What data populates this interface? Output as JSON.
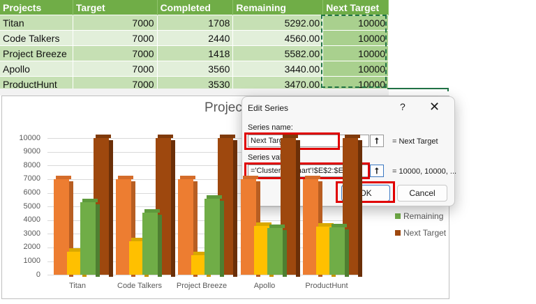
{
  "sheet": {
    "headers": [
      "Projects",
      "Target",
      "Completed",
      "Remaining",
      "Next Target"
    ],
    "rows": [
      {
        "project": "Titan",
        "target": "7000",
        "completed": "1708",
        "remaining": "5292.00",
        "next": "10000"
      },
      {
        "project": "Code Talkers",
        "target": "7000",
        "completed": "2440",
        "remaining": "4560.00",
        "next": "10000"
      },
      {
        "project": "Project Breeze",
        "target": "7000",
        "completed": "1418",
        "remaining": "5582.00",
        "next": "10000"
      },
      {
        "project": "Apollo",
        "target": "7000",
        "completed": "3560",
        "remaining": "3440.00",
        "next": "10000"
      },
      {
        "project": "ProductHunt",
        "target": "7000",
        "completed": "3530",
        "remaining": "3470.00",
        "next": "10000"
      }
    ]
  },
  "chart": {
    "title_visible": "Project",
    "y_ticks": [
      "10000",
      "9000",
      "8000",
      "7000",
      "6000",
      "5000",
      "4000",
      "3000",
      "2000",
      "1000",
      "0"
    ],
    "x_labels": [
      "Titan",
      "Code Talkers",
      "Project Breeze",
      "Apollo",
      "ProductHunt"
    ],
    "legend": [
      {
        "label": "Remaining",
        "color": "#70ad47"
      },
      {
        "label": "Next Target",
        "color": "#9e480e"
      }
    ]
  },
  "dialog": {
    "title": "Edit Series",
    "help": "?",
    "close": "✕",
    "series_name_label": "Series name:",
    "series_name_value": "Next Target",
    "series_name_preview": "= Next Target",
    "series_values_label": "Series values:",
    "series_values_value": "='Clustered Chart'!$E$2:$E$6",
    "series_values_preview": "= 10000, 10000, ...",
    "collapse_icon": "⭡",
    "ok_label": "OK",
    "cancel_label": "Cancel"
  },
  "chart_data": {
    "type": "bar",
    "title": "Project",
    "categories": [
      "Titan",
      "Code Talkers",
      "Project Breeze",
      "Apollo",
      "ProductHunt"
    ],
    "series": [
      {
        "name": "Target",
        "color": "#ed7d31",
        "values": [
          7000,
          7000,
          7000,
          7000,
          7000
        ]
      },
      {
        "name": "Completed",
        "color": "#ffc000",
        "values": [
          1708,
          2440,
          1418,
          3560,
          3530
        ]
      },
      {
        "name": "Remaining",
        "color": "#70ad47",
        "values": [
          5292,
          4560,
          5582,
          3440,
          3470
        ]
      },
      {
        "name": "Next Target",
        "color": "#9e480e",
        "values": [
          10000,
          10000,
          10000,
          10000,
          10000
        ]
      }
    ],
    "xlabel": "",
    "ylabel": "",
    "ylim": [
      0,
      10000
    ],
    "y_ticks": [
      0,
      1000,
      2000,
      3000,
      4000,
      5000,
      6000,
      7000,
      8000,
      9000,
      10000
    ],
    "grid": true,
    "style": "3-D clustered column",
    "legend_position": "right"
  }
}
